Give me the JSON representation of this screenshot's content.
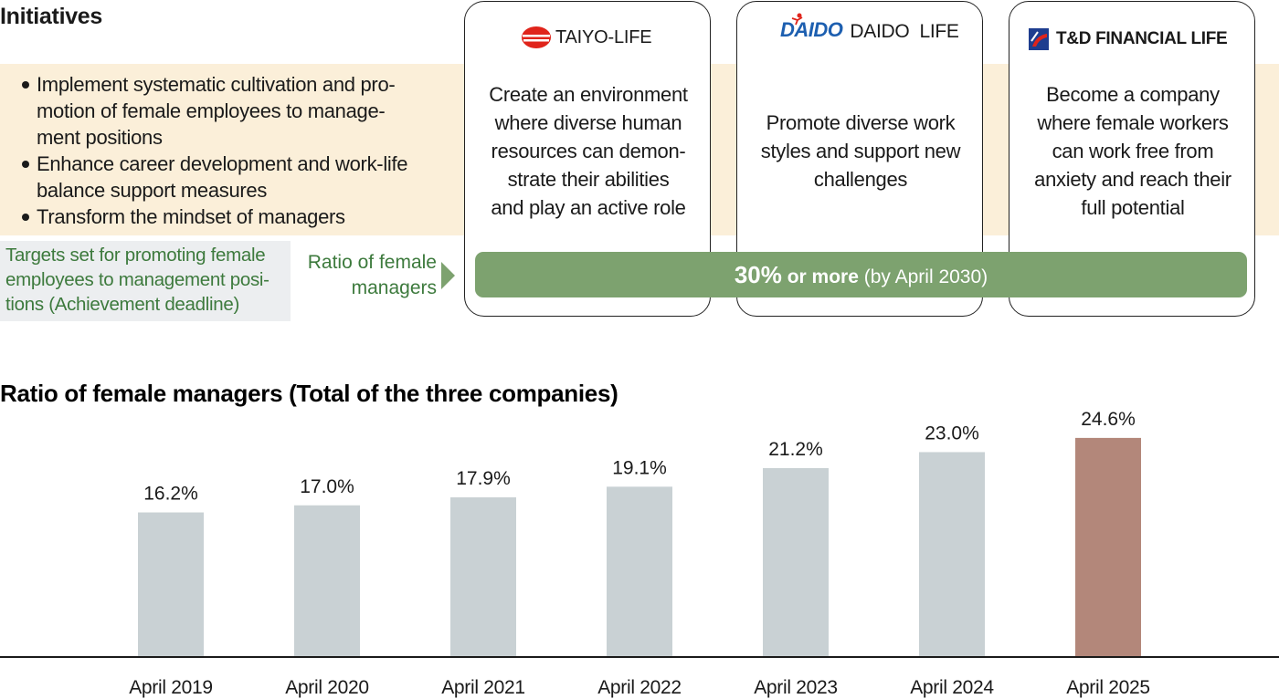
{
  "header": {
    "title": "Initiatives"
  },
  "initiatives": [
    [
      "Implement systematic cultivation and pro-",
      "motion of female employees to manage-",
      "ment positions"
    ],
    [
      "Enhance career development and work-life",
      "balance support measures"
    ],
    [
      "Transform the mindset of managers"
    ]
  ],
  "targets_label": [
    "Targets set for promoting female",
    "employees to management posi-",
    "tions (Achievement deadline)"
  ],
  "target_metric": [
    "Ratio of female",
    "managers"
  ],
  "target": {
    "value": "30%",
    "qualifier": "or more",
    "deadline": "(by April 2030)"
  },
  "companies": [
    {
      "logo": "TAIYO-LIFE",
      "text": [
        "Create an environment",
        "where diverse human",
        "resources can demon-",
        "strate their abilities",
        "and play an active role"
      ]
    },
    {
      "logo_mark": "DAIDO",
      "logo": "DAIDO  LIFE",
      "text": [
        "Promote diverse work",
        "styles and support new",
        "challenges"
      ]
    },
    {
      "logo": "T&D FINANCIAL LIFE",
      "text": [
        "Become a company",
        "where female workers",
        "can work free from",
        "anxiety and reach their",
        "full potential"
      ]
    }
  ],
  "chart_data": {
    "type": "bar",
    "title": "Ratio of female managers (Total of the three companies)",
    "categories": [
      "April 2019",
      "April 2020",
      "April 2021",
      "April 2022",
      "April 2023",
      "April 2024",
      "April 2025"
    ],
    "values": [
      16.2,
      17.0,
      17.9,
      19.1,
      21.2,
      23.0,
      24.6
    ],
    "value_labels": [
      "16.2%",
      "17.0%",
      "17.9%",
      "19.1%",
      "21.2%",
      "23.0%",
      "24.6%"
    ],
    "colors": [
      "#c9d1d4",
      "#c9d1d4",
      "#c9d1d4",
      "#c9d1d4",
      "#c9d1d4",
      "#c9d1d4",
      "#b3877a"
    ],
    "ylim": [
      0,
      25
    ]
  }
}
